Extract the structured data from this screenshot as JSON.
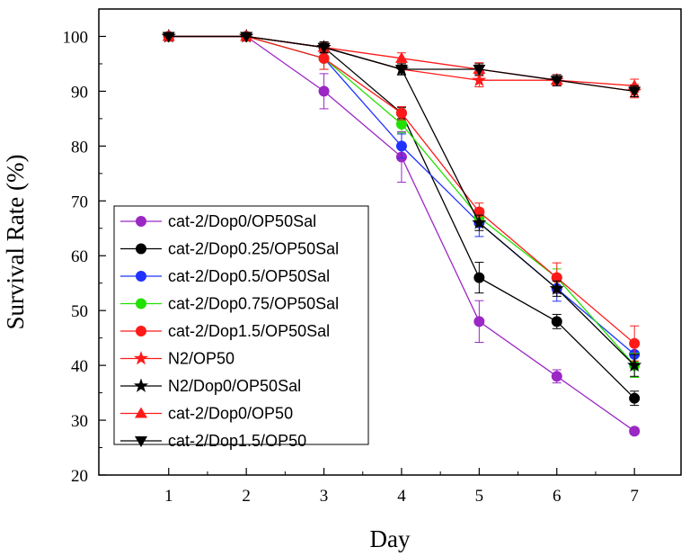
{
  "chart_data": {
    "type": "line",
    "title": "",
    "xlabel": "Day",
    "ylabel": "Survival Rate (%)",
    "xlim": [
      0.1,
      7.6
    ],
    "ylim": [
      20,
      105
    ],
    "x": [
      1,
      2,
      3,
      4,
      5,
      6,
      7
    ],
    "xticks": [
      1,
      2,
      3,
      4,
      5,
      6,
      7
    ],
    "yticks": [
      20,
      30,
      40,
      50,
      60,
      70,
      80,
      90,
      100
    ],
    "grid": false,
    "legend_position": "lower-left",
    "series": [
      {
        "name": "cat-2/Dop0/OP50Sal",
        "color": "#9b27c4",
        "marker": "circle",
        "values": [
          100,
          100,
          90,
          78,
          48,
          38,
          28
        ],
        "errors": [
          0,
          0,
          3.2,
          4.6,
          3.8,
          1.2,
          0.6
        ]
      },
      {
        "name": "cat-2/Dop0.25/OP50Sal",
        "color": "#000000",
        "marker": "circle",
        "values": [
          100,
          100,
          98,
          86,
          56,
          48,
          34
        ],
        "errors": [
          0,
          0,
          1,
          1,
          2.8,
          1.3,
          1.3
        ]
      },
      {
        "name": "cat-2/Dop0.5/OP50Sal",
        "color": "#1f33ff",
        "marker": "circle",
        "values": [
          100,
          100,
          96,
          80,
          66,
          54,
          42
        ],
        "errors": [
          0,
          0,
          2,
          2.2,
          2.5,
          2.3,
          2
        ]
      },
      {
        "name": "cat-2/Dop0.75/OP50Sal",
        "color": "#22e000",
        "marker": "circle",
        "values": [
          100,
          100,
          96,
          84,
          67,
          56,
          40
        ],
        "errors": [
          0,
          0,
          2,
          1.6,
          1.6,
          1.6,
          2.2
        ]
      },
      {
        "name": "cat-2/Dop1.5/OP50Sal",
        "color": "#ff1a1a",
        "marker": "circle",
        "values": [
          100,
          100,
          96,
          86,
          68,
          56,
          44
        ],
        "errors": [
          0,
          0,
          2,
          1.2,
          1.6,
          2.7,
          3.2
        ]
      },
      {
        "name": "N2/OP50",
        "color": "#ff1a1a",
        "marker": "star",
        "values": [
          100,
          100,
          98,
          94,
          92,
          92,
          90
        ],
        "errors": [
          0,
          0,
          1,
          1,
          1.2,
          1,
          1.2
        ]
      },
      {
        "name": "N2/Dop0/OP50Sal",
        "color": "#000000",
        "marker": "star",
        "values": [
          100,
          100,
          98,
          94,
          66,
          54,
          40
        ],
        "errors": [
          0,
          0,
          1,
          1,
          1.4,
          1.4,
          2
        ]
      },
      {
        "name": "cat-2/Dop0/OP50",
        "color": "#ff1a1a",
        "marker": "triangle-up",
        "values": [
          100,
          100,
          98,
          96,
          94,
          92,
          91
        ],
        "errors": [
          0,
          0,
          1,
          1,
          1.2,
          1,
          1.2
        ]
      },
      {
        "name": "cat-2/Dop1.5/OP50",
        "color": "#000000",
        "marker": "triangle-down",
        "values": [
          100,
          100,
          98,
          94,
          94,
          92,
          90
        ],
        "errors": [
          0,
          0,
          1,
          1,
          1,
          1,
          1
        ]
      }
    ]
  }
}
